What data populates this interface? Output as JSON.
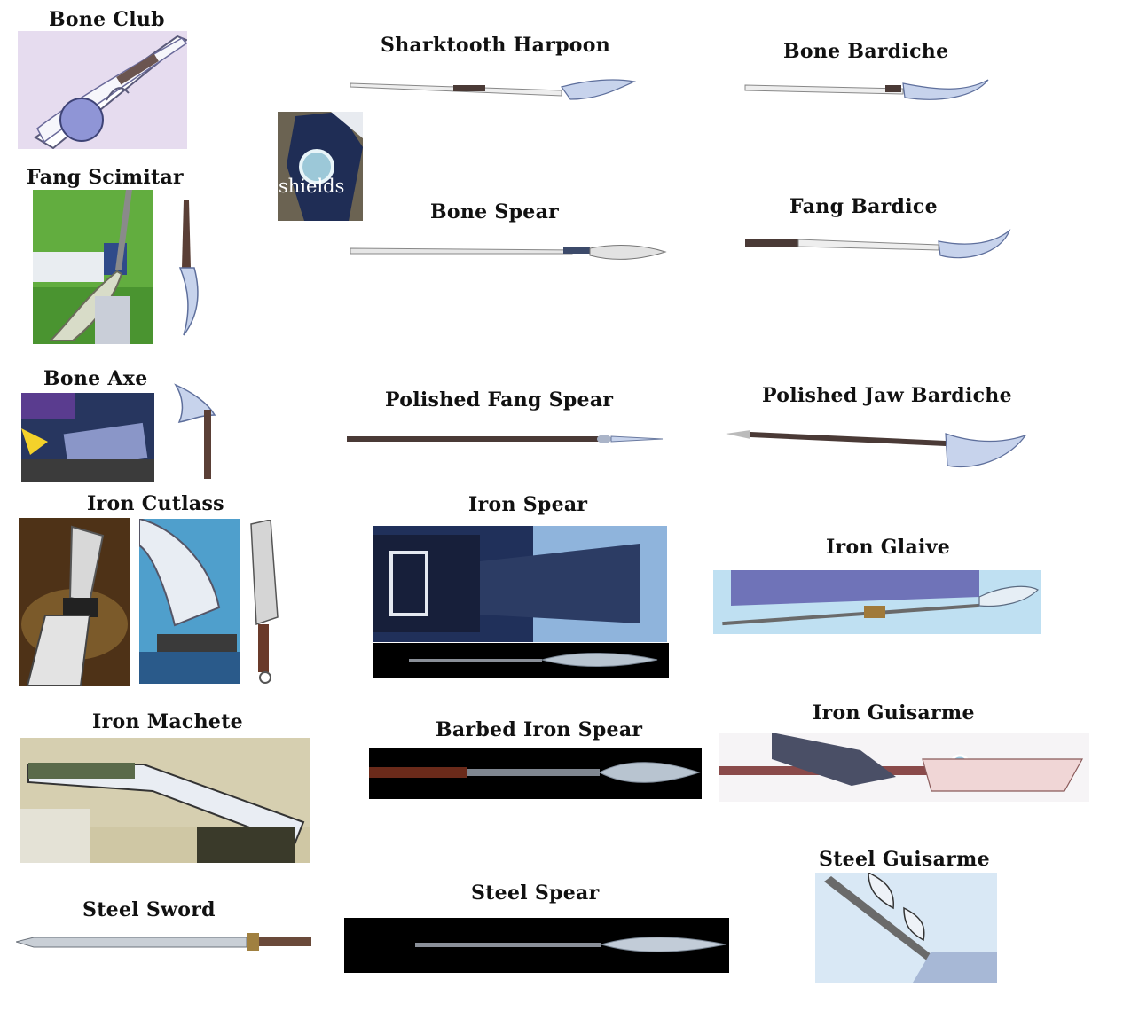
{
  "labels": {
    "bone_club": "Bone Club",
    "sharktooth_harpoon": "Sharktooth Harpoon",
    "bone_bardiche": "Bone Bardiche",
    "fang_scimitar": "Fang Scimitar",
    "shields": "shields",
    "bone_spear": "Bone Spear",
    "fang_bardice": "Fang Bardice",
    "bone_axe": "Bone Axe",
    "polished_fang_spear": "Polished Fang Spear",
    "polished_jaw_bardiche": "Polished Jaw Bardiche",
    "iron_cutlass": "Iron  Cutlass",
    "iron_spear": "Iron Spear",
    "iron_glaive": "Iron Glaive",
    "iron_machete": "Iron Machete",
    "barbed_iron_spear": "Barbed Iron Spear",
    "iron_guisarme": "Iron Guisarme",
    "steel_sword": "Steel Sword",
    "steel_spear": "Steel Spear",
    "steel_guisarme": "Steel Guisarme"
  },
  "colors": {
    "label_text": "#111111",
    "blade": "#c9d6ec",
    "blade_edge": "#7f8fb8",
    "bone": "#eeeeee",
    "shaft_dark": "#4a3a36",
    "black_bg": "#000000"
  }
}
